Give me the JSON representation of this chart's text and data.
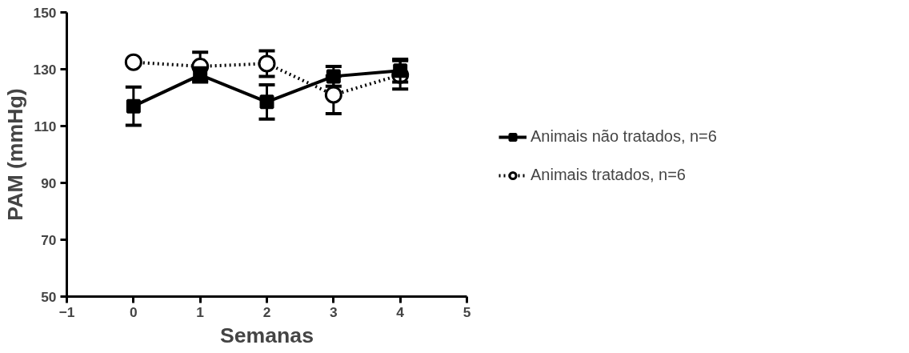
{
  "chart_data": {
    "type": "line",
    "xlabel": "Semanas",
    "ylabel": "PAM (mmHg)",
    "x": [
      0,
      1,
      2,
      3,
      4
    ],
    "xlim": [
      -1,
      5
    ],
    "xticks": [
      -1,
      0,
      1,
      2,
      3,
      4,
      5
    ],
    "ylim": [
      50,
      150
    ],
    "yticks": [
      50,
      70,
      90,
      110,
      130,
      150
    ],
    "grid": false,
    "legend": "right",
    "series": [
      {
        "name": "Animais não tratados, n=6",
        "color": "#000000",
        "marker": "square",
        "line_style": "solid",
        "values": [
          117,
          128,
          118.5,
          127.5,
          129.5
        ],
        "errors": [
          6.7,
          2.5,
          6,
          3.5,
          4
        ]
      },
      {
        "name": "Animais tratados, n=6",
        "color": "#000000",
        "marker": "circle",
        "line_style": "dotted",
        "values": [
          132.5,
          131,
          132,
          121,
          128
        ],
        "errors": [
          null,
          5,
          4.5,
          6.6,
          5
        ]
      }
    ]
  }
}
